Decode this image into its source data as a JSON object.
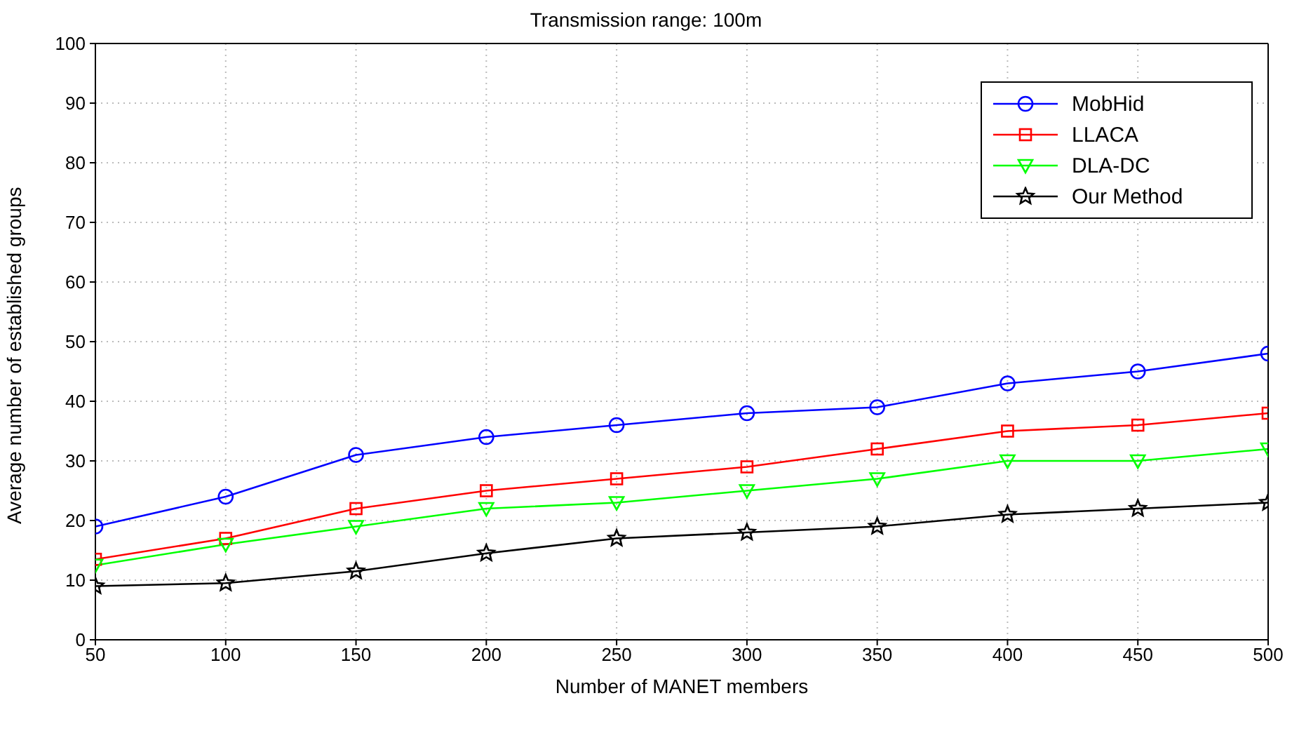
{
  "chart_data": {
    "type": "line",
    "title": "Transmission range: 100m",
    "xlabel": "Number of MANET members",
    "ylabel": "Average number of established groups",
    "x": [
      50,
      100,
      150,
      200,
      250,
      300,
      350,
      400,
      450,
      500
    ],
    "series": [
      {
        "name": "MobHid",
        "color": "#0000ff",
        "marker": "circle",
        "values": [
          19,
          24,
          31,
          34,
          36,
          38,
          39,
          43,
          45,
          48
        ]
      },
      {
        "name": "LLACA",
        "color": "#ff0000",
        "marker": "square",
        "values": [
          13.5,
          17,
          22,
          25,
          27,
          29,
          32,
          35,
          36,
          38
        ]
      },
      {
        "name": "DLA-DC",
        "color": "#00ff00",
        "marker": "triangle",
        "values": [
          12.5,
          16,
          19,
          22,
          23,
          25,
          27,
          30,
          30,
          32
        ]
      },
      {
        "name": "Our Method",
        "color": "#000000",
        "marker": "star",
        "values": [
          9,
          9.5,
          11.5,
          14.5,
          17,
          18,
          19,
          21,
          22,
          23
        ]
      }
    ],
    "xlim": [
      50,
      500
    ],
    "xticks": [
      50,
      100,
      150,
      200,
      250,
      300,
      350,
      400,
      450,
      500
    ],
    "ylim": [
      0,
      100
    ],
    "yticks": [
      0,
      10,
      20,
      30,
      40,
      50,
      60,
      70,
      80,
      90,
      100
    ],
    "grid": true,
    "legend": "top right",
    "line_style": "solid"
  }
}
